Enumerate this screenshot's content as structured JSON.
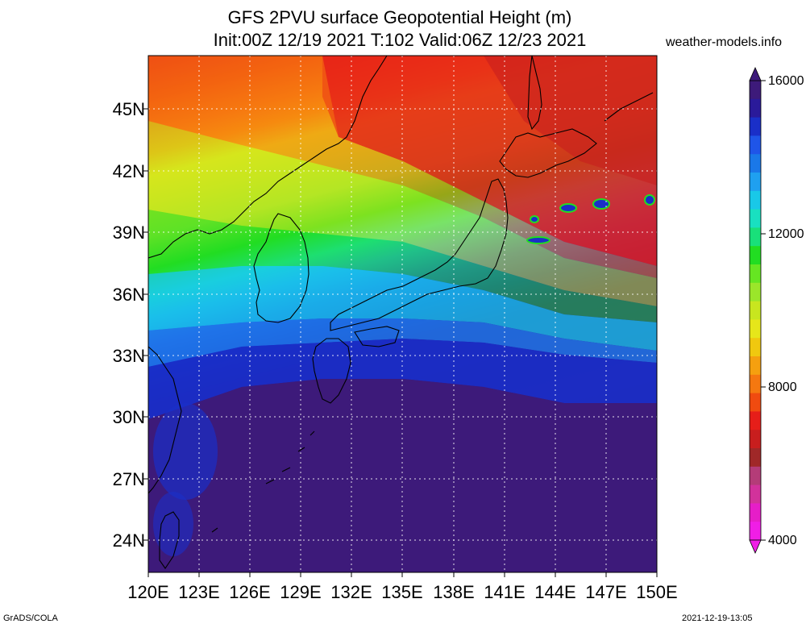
{
  "title_line1": "GFS 2PVU surface Geopotential Height (m)",
  "title_line2": "Init:00Z 12/19 2021 T:102 Valid:06Z 12/23 2021",
  "website": "weather-models.info",
  "latitude_labels": [
    "45N",
    "42N",
    "39N",
    "36N",
    "33N",
    "30N",
    "27N",
    "24N"
  ],
  "longitude_labels": [
    "120E",
    "123E",
    "126E",
    "129E",
    "132E",
    "135E",
    "138E",
    "141E",
    "144E",
    "147E",
    "150E"
  ],
  "colorbar": {
    "labels": [
      "16000",
      "12000",
      "8000",
      "4000"
    ],
    "colors": [
      "#3d1a7a",
      "#2a1a9a",
      "#1a2fc8",
      "#1f55e8",
      "#1a78e8",
      "#1fa0f0",
      "#19c8e8",
      "#19e0c0",
      "#19e07a",
      "#22dd22",
      "#66e622",
      "#9be62a",
      "#c8e61f",
      "#e6e61a",
      "#f0c80f",
      "#f5a00f",
      "#f57810",
      "#f04b10",
      "#e61e19",
      "#c81e1e",
      "#a02828",
      "#b43c78",
      "#d2329b",
      "#e61ec8",
      "#f01ee6"
    ]
  },
  "credit": "GrADS/COLA",
  "timestamp": "2021-12-19-13:05"
}
